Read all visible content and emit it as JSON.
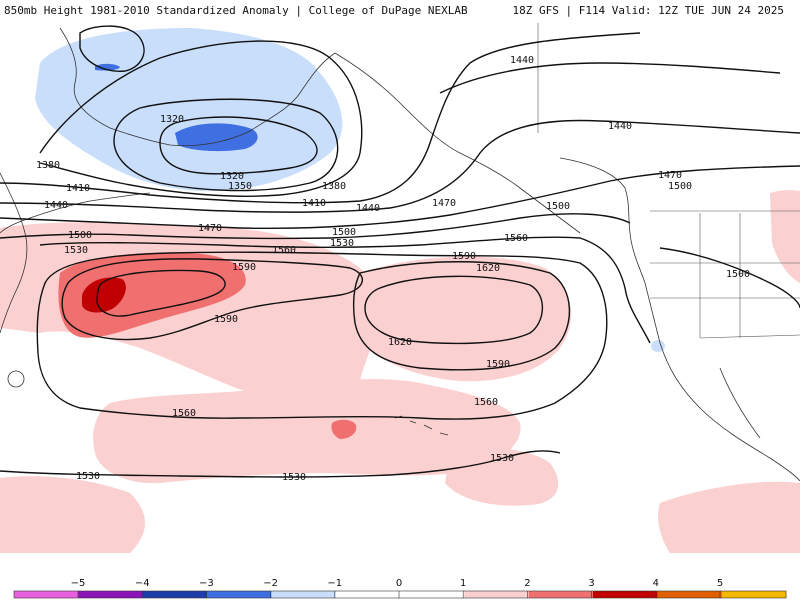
{
  "header": {
    "left": "850mb Height 1981-2010 Standardized Anomaly | College of DuPage NEXLAB",
    "right": "18Z GFS | F114 Valid: 12Z TUE JUN 24 2025"
  },
  "colors": {
    "anom_neg5": "#e85fe0",
    "anom_neg4": "#8a14b8",
    "anom_neg3": "#1e3da8",
    "anom_neg2": "#3f6fe0",
    "anom_neg1": "#c9defa",
    "anom_neutral": "#ffffff",
    "anom_pos1": "#fbd0d0",
    "anom_pos2": "#f07070",
    "anom_pos3": "#c00000",
    "anom_pos4": "#e06000",
    "anom_pos5": "#f5b800",
    "contour": "#111111",
    "coastline": "#333333"
  },
  "contour_labels": [
    {
      "id": "c1440a",
      "text": "1440"
    },
    {
      "id": "c1440b",
      "text": "1440"
    },
    {
      "id": "c1320a",
      "text": "1320"
    },
    {
      "id": "c1320b",
      "text": "1320"
    },
    {
      "id": "c1350",
      "text": "1350"
    },
    {
      "id": "c1380a",
      "text": "1380"
    },
    {
      "id": "c1380b",
      "text": "1380"
    },
    {
      "id": "c1410a",
      "text": "1410"
    },
    {
      "id": "c1410b",
      "text": "1410"
    },
    {
      "id": "c1440c",
      "text": "1440"
    },
    {
      "id": "c1440d",
      "text": "1440"
    },
    {
      "id": "c1470a",
      "text": "1470"
    },
    {
      "id": "c1470b",
      "text": "1470"
    },
    {
      "id": "c1470c",
      "text": "1470"
    },
    {
      "id": "c1500a",
      "text": "1500"
    },
    {
      "id": "c1500b",
      "text": "1500"
    },
    {
      "id": "c1500c",
      "text": "1500"
    },
    {
      "id": "c1500d",
      "text": "1500"
    },
    {
      "id": "c1500e",
      "text": "1500"
    },
    {
      "id": "c1530a",
      "text": "1530"
    },
    {
      "id": "c1530b",
      "text": "1530"
    },
    {
      "id": "c1530c",
      "text": "1530"
    },
    {
      "id": "c1530d",
      "text": "1530"
    },
    {
      "id": "c1530e",
      "text": "1530"
    },
    {
      "id": "c1560a",
      "text": "1560"
    },
    {
      "id": "c1560b",
      "text": "1560"
    },
    {
      "id": "c1560c",
      "text": "1560"
    },
    {
      "id": "c1560d",
      "text": "1560"
    },
    {
      "id": "c1590a",
      "text": "1590"
    },
    {
      "id": "c1590b",
      "text": "1590"
    },
    {
      "id": "c1590c",
      "text": "1590"
    },
    {
      "id": "c1590d",
      "text": "1590"
    },
    {
      "id": "c1620a",
      "text": "1620"
    },
    {
      "id": "c1620b",
      "text": "1620"
    }
  ],
  "legend": {
    "ticks": [
      "−5",
      "−4",
      "−3",
      "−2",
      "−1",
      "0",
      "1",
      "2",
      "3",
      "4",
      "5"
    ]
  }
}
